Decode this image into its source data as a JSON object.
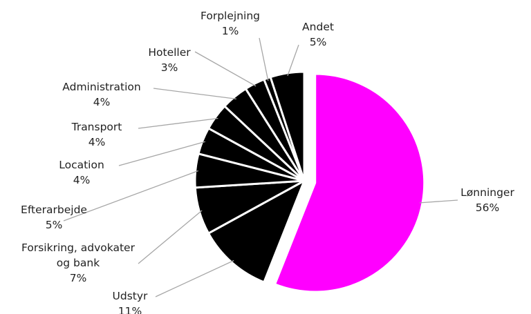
{
  "chart_data": {
    "type": "pie",
    "categories": [
      "Lønninger",
      "Udstyr",
      "Forsikring, advokater og bank",
      "Efterarbejde",
      "Location",
      "Transport",
      "Administration",
      "Hoteller",
      "Forplejning",
      "Andet"
    ],
    "values": [
      56,
      11,
      7,
      5,
      4,
      4,
      4,
      3,
      1,
      5
    ],
    "value_labels": [
      "56%",
      "11%",
      "7%",
      "5%",
      "4%",
      "4%",
      "4%",
      "3%",
      "1%",
      "5%"
    ],
    "colors": [
      "#ff00ff",
      "#000000",
      "#000000",
      "#000000",
      "#000000",
      "#000000",
      "#000000",
      "#000000",
      "#000000",
      "#000000"
    ]
  }
}
